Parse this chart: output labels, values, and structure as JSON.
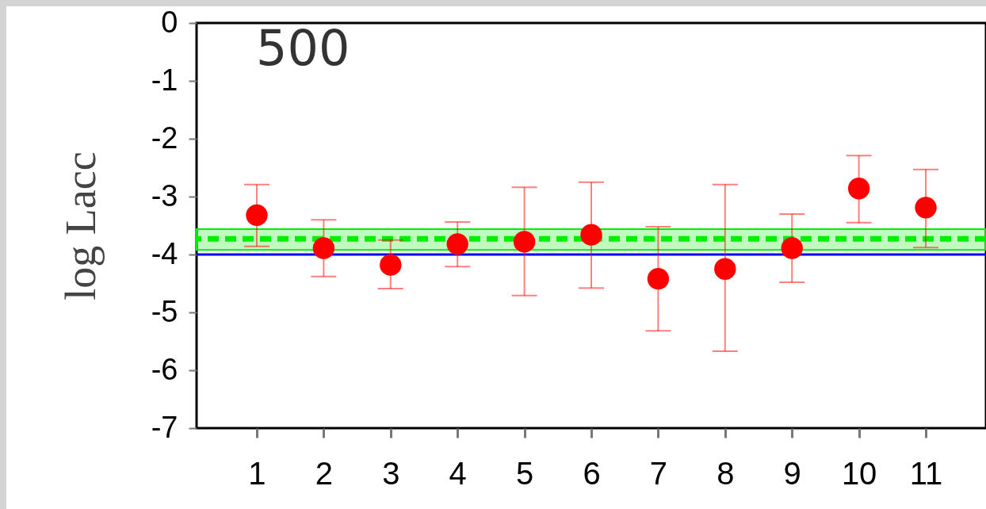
{
  "chart_data": {
    "type": "scatter",
    "ylabel": "log Lacc",
    "annotations": [
      "500"
    ],
    "marker": "circle",
    "x": [
      1,
      2,
      3,
      4,
      5,
      6,
      7,
      8,
      9,
      10,
      11
    ],
    "xlim": [
      0.1,
      11.9
    ],
    "xticks": [
      1,
      2,
      3,
      4,
      5,
      6,
      7,
      8,
      9,
      10,
      11
    ],
    "ylim": [
      -7,
      0
    ],
    "yticks": [
      0,
      -1,
      -2,
      -3,
      -4,
      -5,
      -6,
      -7
    ],
    "series": [
      {
        "color": "#ff0000",
        "values": [
          -3.32,
          -3.89,
          -4.18,
          -3.82,
          -3.78,
          -3.66,
          -4.42,
          -4.25,
          -3.89,
          -2.86,
          -3.19
        ],
        "errors": [
          [
            -3.86,
            -2.79
          ],
          [
            -4.38,
            -3.4
          ],
          [
            -4.59,
            -3.75
          ],
          [
            -4.21,
            -3.44
          ],
          [
            -4.71,
            -2.84
          ],
          [
            -4.58,
            -2.75
          ],
          [
            -5.32,
            -3.52
          ],
          [
            -5.67,
            -2.79
          ],
          [
            -4.48,
            -3.3
          ],
          [
            -3.45,
            -2.29
          ],
          [
            -3.88,
            -2.53
          ]
        ]
      }
    ],
    "bands": [
      {
        "axis": "y",
        "from": -3.92,
        "to": -3.56,
        "color": "#00ee00"
      }
    ],
    "ref_lines": [
      {
        "axis": "y",
        "value": -3.73,
        "color": "#00ee00",
        "line_style": "dashed"
      },
      {
        "axis": "y",
        "value": -4.0,
        "color": "#0000ff",
        "line_style": "solid"
      }
    ]
  }
}
